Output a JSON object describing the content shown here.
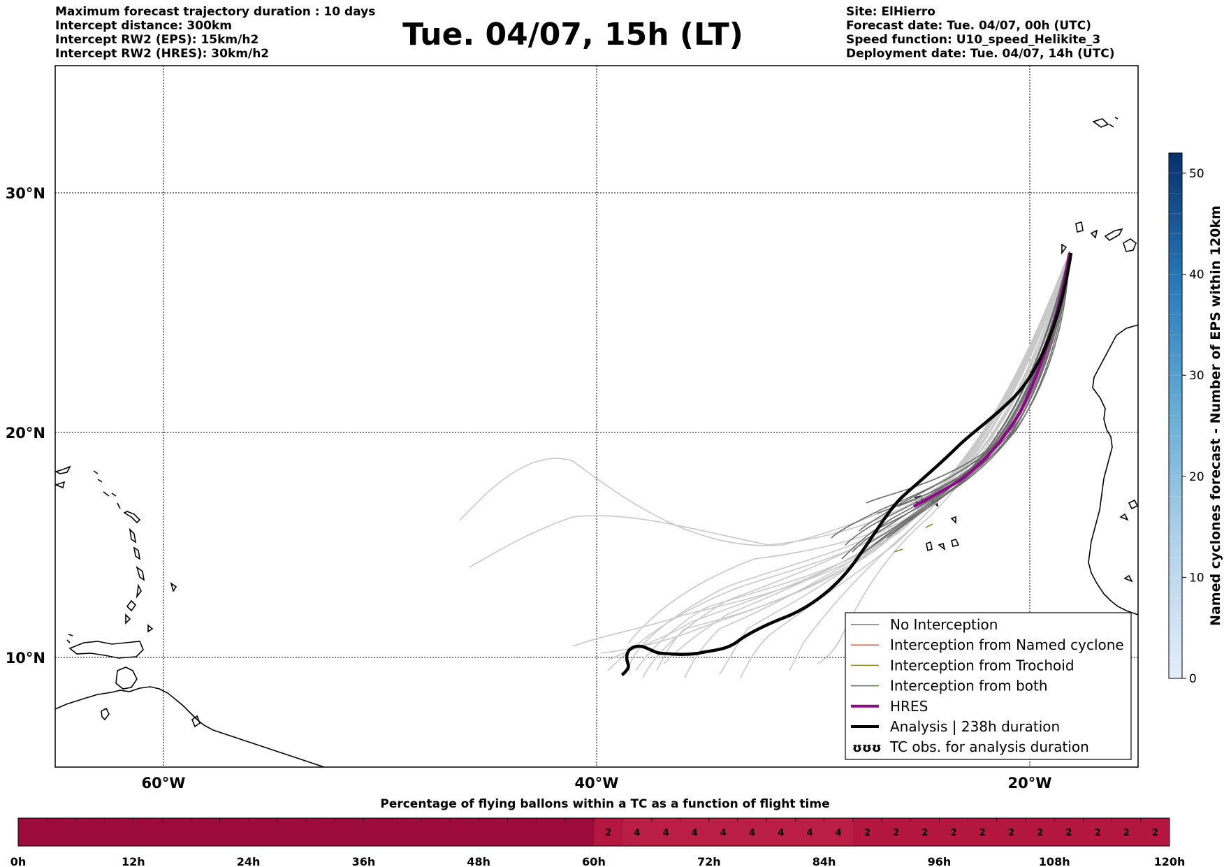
{
  "header_left": [
    "Maximum forecast trajectory duration : 10 days",
    "Intercept distance: 300km",
    "Intercept RW2 (EPS):  15km/h2",
    "Intercept RW2 (HRES): 30km/h2"
  ],
  "header_right": [
    "Site: ElHierro",
    "Forecast date: Tue. 04/07, 00h (UTC)",
    "Speed function: U10_speed_Helikite_3",
    "Deployment date: Tue. 04/07, 14h (UTC)"
  ],
  "title": "Tue. 04/07, 15h (LT)",
  "map": {
    "lat_labels": [
      "30°N",
      "20°N",
      "10°N"
    ],
    "lon_labels": [
      "60°W",
      "40°W",
      "20°W"
    ],
    "lat_gridlines": [
      30,
      20,
      10
    ],
    "lon_gridlines": [
      -60,
      -40,
      -20
    ],
    "extent": {
      "lon_min": -65,
      "lon_max": -15,
      "lat_min": 5.4,
      "lat_max": 35.3
    }
  },
  "colorbar": {
    "title": "Named cyclones forecast - Number of EPS within 120km",
    "ticks": [
      0,
      10,
      20,
      30,
      40,
      50
    ],
    "vmin": 0,
    "vmax": 52,
    "color_low": "#e3eef9",
    "color_high": "#08306b"
  },
  "legend": {
    "items": [
      {
        "label": "No Interception",
        "color": "#777777",
        "width": 1.5
      },
      {
        "label": "Interception from Named cyclone",
        "color": "#e8541e",
        "width": 1.5
      },
      {
        "label": "Interception from Trochoid",
        "color": "#8a8a2a",
        "width": 1.5
      },
      {
        "label": "Interception from both",
        "color": "#2e8b2e",
        "width": 1.5
      },
      {
        "label": "HRES",
        "color": "#8b0a85",
        "width": 4
      },
      {
        "label": "Analysis | 238h duration",
        "color": "#000000",
        "width": 4
      },
      {
        "label": "TC obs. for analysis duration",
        "color": "#000000",
        "symbol": "ʊʊʊ"
      }
    ]
  },
  "chart_data": {
    "type": "bar",
    "title": "Percentage of flying ballons within a TC as a function of flight time",
    "x_tick_labels": [
      "0h",
      "12h",
      "24h",
      "36h",
      "48h",
      "60h",
      "72h",
      "84h",
      "96h",
      "108h",
      "120h"
    ],
    "bin_hours": 3,
    "values": [
      0,
      0,
      0,
      0,
      0,
      0,
      0,
      0,
      0,
      0,
      0,
      0,
      0,
      0,
      0,
      0,
      0,
      0,
      0,
      0,
      2,
      4,
      4,
      4,
      4,
      4,
      4,
      4,
      4,
      2,
      2,
      2,
      2,
      2,
      2,
      2,
      2,
      2,
      2,
      2
    ],
    "color_base": "#9d0a3c",
    "color_mid": "#b3163f",
    "color_high": "#ba1e44"
  }
}
